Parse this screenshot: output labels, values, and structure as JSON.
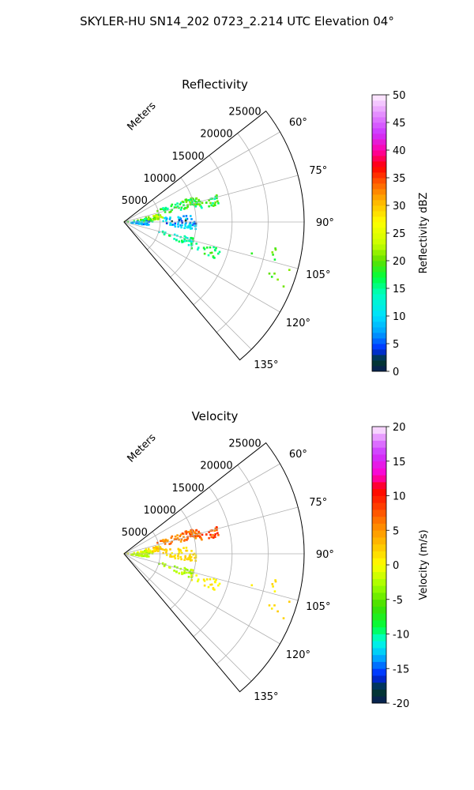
{
  "figure": {
    "suptitle": "SKYLER-HU  SN14_202  0723_2.214 UTC Elevation 04°"
  },
  "chart_data": [
    {
      "type": "heatmap",
      "subtype": "polar-sector (radar PPI)",
      "title": "Reflectivity",
      "radial_label": "Meters",
      "radial_ticks": [
        "5000",
        "10000",
        "15000",
        "20000",
        "25000"
      ],
      "radial_tick_values": [
        5000,
        10000,
        15000,
        20000,
        25000
      ],
      "rmax": 25000,
      "angle_ticks": [
        "60°",
        "75°",
        "90°",
        "105°",
        "120°",
        "135°"
      ],
      "angle_tick_values": [
        60,
        75,
        90,
        105,
        120,
        135
      ],
      "theta_range": [
        52,
        140
      ],
      "grid": true,
      "colorbar": {
        "label": "Reflectivity dBZ",
        "range": [
          0,
          50
        ],
        "ticks": [
          "0",
          "5",
          "10",
          "15",
          "20",
          "25",
          "30",
          "35",
          "40",
          "45",
          "50"
        ],
        "tick_values": [
          0,
          5,
          10,
          15,
          20,
          25,
          30,
          35,
          40,
          45,
          50
        ],
        "levels": 50,
        "colormap": "pyart_NWSRef-like",
        "color_stops": [
          [
            0,
            "#0a1c5a"
          ],
          [
            2,
            "#003c28"
          ],
          [
            4,
            "#002bff"
          ],
          [
            7,
            "#00a0ff"
          ],
          [
            10,
            "#00e0ff"
          ],
          [
            14,
            "#00ffc0"
          ],
          [
            17,
            "#00ff40"
          ],
          [
            20,
            "#5ee000"
          ],
          [
            23,
            "#c8ff00"
          ],
          [
            27,
            "#ffff00"
          ],
          [
            31,
            "#ffb000"
          ],
          [
            34,
            "#ff6000"
          ],
          [
            37,
            "#ff0000"
          ],
          [
            40,
            "#ff00aa"
          ],
          [
            43,
            "#cc33ff"
          ],
          [
            46,
            "#e080ff"
          ],
          [
            50,
            "#fff0ff"
          ]
        ]
      },
      "echo_regions": [
        {
          "theta": [
            70,
            78
          ],
          "r": [
            4000,
            11000
          ],
          "value": [
            14,
            22
          ],
          "density": 0.8
        },
        {
          "theta": [
            74,
            80
          ],
          "r": [
            9000,
            13500
          ],
          "value": [
            13,
            21
          ],
          "density": 0.55
        },
        {
          "theta": [
            78,
            86
          ],
          "r": [
            2000,
            5500
          ],
          "value": [
            18,
            25
          ],
          "density": 0.75
        },
        {
          "theta": [
            82,
            90
          ],
          "r": [
            0,
            4000
          ],
          "value": [
            14,
            22
          ],
          "density": 0.6
        },
        {
          "theta": [
            84,
            94
          ],
          "r": [
            5000,
            10000
          ],
          "value": [
            2,
            12
          ],
          "density": 0.55
        },
        {
          "theta": [
            88,
            98
          ],
          "r": [
            0,
            3500
          ],
          "value": [
            3,
            12
          ],
          "density": 0.6
        },
        {
          "theta": [
            92,
            96
          ],
          "r": [
            5500,
            10000
          ],
          "value": [
            8,
            14
          ],
          "density": 0.6
        },
        {
          "theta": [
            103,
            110
          ],
          "r": [
            4000,
            10000
          ],
          "value": [
            11,
            18
          ],
          "density": 0.55
        },
        {
          "theta": [
            105,
            112
          ],
          "r": [
            9000,
            14000
          ],
          "value": [
            13,
            20
          ],
          "density": 0.4
        },
        {
          "theta": [
            99,
            104
          ],
          "r": [
            15000,
            23000
          ],
          "value": [
            17,
            22
          ],
          "density": 0.1
        },
        {
          "theta": [
            106,
            112
          ],
          "r": [
            18000,
            24000
          ],
          "value": [
            17,
            22
          ],
          "density": 0.1
        }
      ]
    },
    {
      "type": "heatmap",
      "subtype": "polar-sector (radar PPI)",
      "title": "Velocity",
      "radial_label": "Meters",
      "radial_ticks": [
        "5000",
        "10000",
        "15000",
        "20000",
        "25000"
      ],
      "radial_tick_values": [
        5000,
        10000,
        15000,
        20000,
        25000
      ],
      "rmax": 25000,
      "angle_ticks": [
        "60°",
        "75°",
        "90°",
        "105°",
        "120°",
        "135°"
      ],
      "angle_tick_values": [
        60,
        75,
        90,
        105,
        120,
        135
      ],
      "theta_range": [
        52,
        140
      ],
      "grid": true,
      "colorbar": {
        "label": "Velocity (m/s)",
        "range": [
          -20,
          20
        ],
        "ticks": [
          "-20",
          "-15",
          "-10",
          "-5",
          "0",
          "5",
          "10",
          "15",
          "20"
        ],
        "tick_values": [
          -20,
          -15,
          -10,
          -5,
          0,
          5,
          10,
          15,
          20
        ],
        "levels": 40,
        "colormap": "pyart_BuDRd-like",
        "color_stops": [
          [
            -20,
            "#0a1c5a"
          ],
          [
            -18,
            "#003c28"
          ],
          [
            -16,
            "#0020ff"
          ],
          [
            -13,
            "#00c0ff"
          ],
          [
            -11,
            "#00ffe0"
          ],
          [
            -9,
            "#00ff40"
          ],
          [
            -6,
            "#40dd00"
          ],
          [
            -3,
            "#a0ff00"
          ],
          [
            0,
            "#ffff00"
          ],
          [
            3,
            "#ffc000"
          ],
          [
            6,
            "#ff8000"
          ],
          [
            9,
            "#ff3000"
          ],
          [
            11,
            "#ff0000"
          ],
          [
            13,
            "#ff00cc"
          ],
          [
            16,
            "#cc33ff"
          ],
          [
            18,
            "#e080ff"
          ],
          [
            20,
            "#fff0ff"
          ]
        ]
      },
      "echo_regions": [
        {
          "theta": [
            70,
            78
          ],
          "r": [
            4000,
            11000
          ],
          "value": [
            4,
            9
          ],
          "density": 0.8
        },
        {
          "theta": [
            74,
            80
          ],
          "r": [
            9000,
            13500
          ],
          "value": [
            5,
            10
          ],
          "density": 0.55
        },
        {
          "theta": [
            78,
            86
          ],
          "r": [
            2000,
            5500
          ],
          "value": [
            0,
            4
          ],
          "density": 0.75
        },
        {
          "theta": [
            82,
            90
          ],
          "r": [
            0,
            4000
          ],
          "value": [
            -3,
            1
          ],
          "density": 0.6
        },
        {
          "theta": [
            84,
            94
          ],
          "r": [
            5000,
            10000
          ],
          "value": [
            0,
            3
          ],
          "density": 0.45
        },
        {
          "theta": [
            88,
            98
          ],
          "r": [
            0,
            3500
          ],
          "value": [
            -4,
            -1
          ],
          "density": 0.6
        },
        {
          "theta": [
            92,
            96
          ],
          "r": [
            5500,
            10000
          ],
          "value": [
            1,
            3
          ],
          "density": 0.6
        },
        {
          "theta": [
            103,
            110
          ],
          "r": [
            4000,
            10000
          ],
          "value": [
            -4,
            -1
          ],
          "density": 0.55
        },
        {
          "theta": [
            105,
            112
          ],
          "r": [
            9000,
            14000
          ],
          "value": [
            -1,
            2
          ],
          "density": 0.4
        },
        {
          "theta": [
            99,
            104
          ],
          "r": [
            15000,
            23000
          ],
          "value": [
            0,
            3
          ],
          "density": 0.1
        },
        {
          "theta": [
            106,
            112
          ],
          "r": [
            18000,
            24000
          ],
          "value": [
            0,
            3
          ],
          "density": 0.1
        }
      ]
    }
  ]
}
